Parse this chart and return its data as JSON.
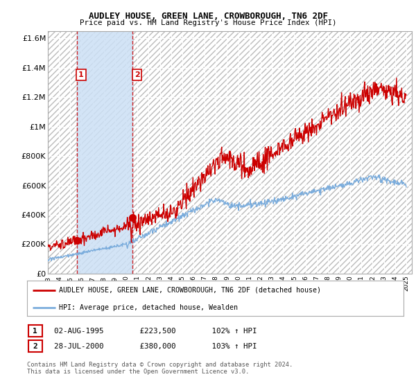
{
  "title1": "AUDLEY HOUSE, GREEN LANE, CROWBOROUGH, TN6 2DF",
  "title2": "Price paid vs. HM Land Registry's House Price Index (HPI)",
  "bg_color": "#ffffff",
  "plot_bg_color": "#e8e8e8",
  "grid_color": "#ffffff",
  "red_line_color": "#cc0000",
  "blue_line_color": "#7aacdc",
  "sale1_date_num": 1995.58,
  "sale1_price": 223500,
  "sale2_date_num": 2000.57,
  "sale2_price": 380000,
  "sale1_label": "1",
  "sale2_label": "2",
  "legend_red": "AUDLEY HOUSE, GREEN LANE, CROWBOROUGH, TN6 2DF (detached house)",
  "legend_blue": "HPI: Average price, detached house, Wealden",
  "table_row1": [
    "1",
    "02-AUG-1995",
    "£223,500",
    "102% ↑ HPI"
  ],
  "table_row2": [
    "2",
    "28-JUL-2000",
    "£380,000",
    "103% ↑ HPI"
  ],
  "footnote": "Contains HM Land Registry data © Crown copyright and database right 2024.\nThis data is licensed under the Open Government Licence v3.0.",
  "xmin": 1993,
  "xmax": 2025.5,
  "ymin": 0,
  "ymax": 1650000,
  "yticks": [
    0,
    200000,
    400000,
    600000,
    800000,
    1000000,
    1200000,
    1400000,
    1600000
  ],
  "ytick_labels": [
    "£0",
    "£200K",
    "£400K",
    "£600K",
    "£800K",
    "£1M",
    "£1.2M",
    "£1.4M",
    "£1.6M"
  ]
}
